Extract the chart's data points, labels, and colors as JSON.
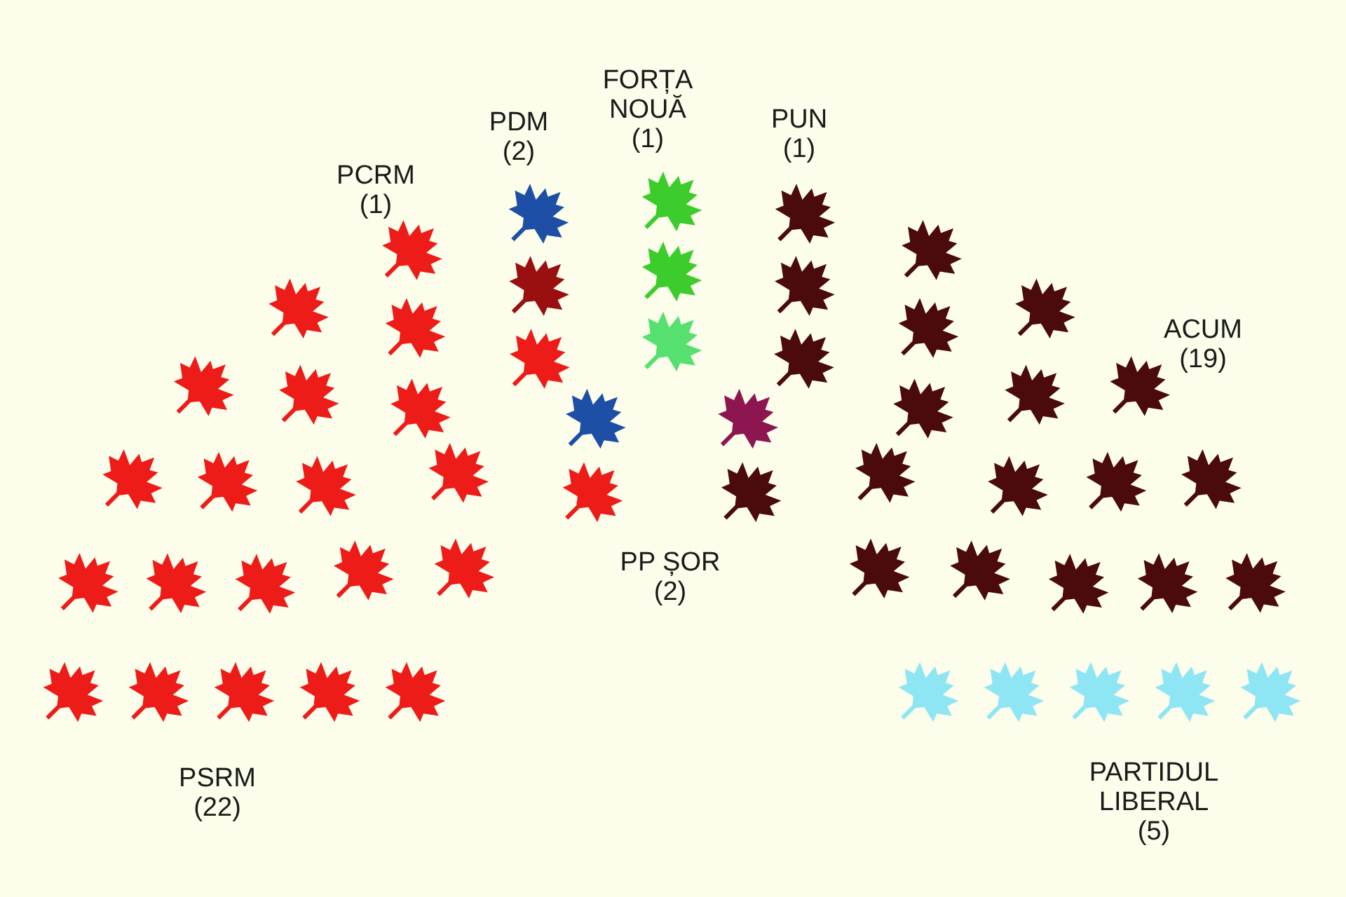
{
  "chart_data": {
    "type": "other",
    "categories": [
      "PSRM",
      "PCRM",
      "PDM",
      "FORȚA NOUĂ",
      "PP ȘOR",
      "PUN",
      "ACUM",
      "PARTIDUL LIBERAL"
    ],
    "values": [
      22,
      1,
      2,
      1,
      2,
      1,
      19,
      5
    ],
    "value_labels": [
      "(22)",
      "(1)",
      "(2)",
      "(1)",
      "(2)",
      "(1)",
      "(19)",
      "(5)"
    ],
    "colors": [
      "#ee1c18",
      "#9a1010",
      "#1d4fa6",
      "#55e070",
      "#3ccc2c",
      "#8e1650",
      "#4a0a0e",
      "#8ee6f4"
    ]
  }
}
